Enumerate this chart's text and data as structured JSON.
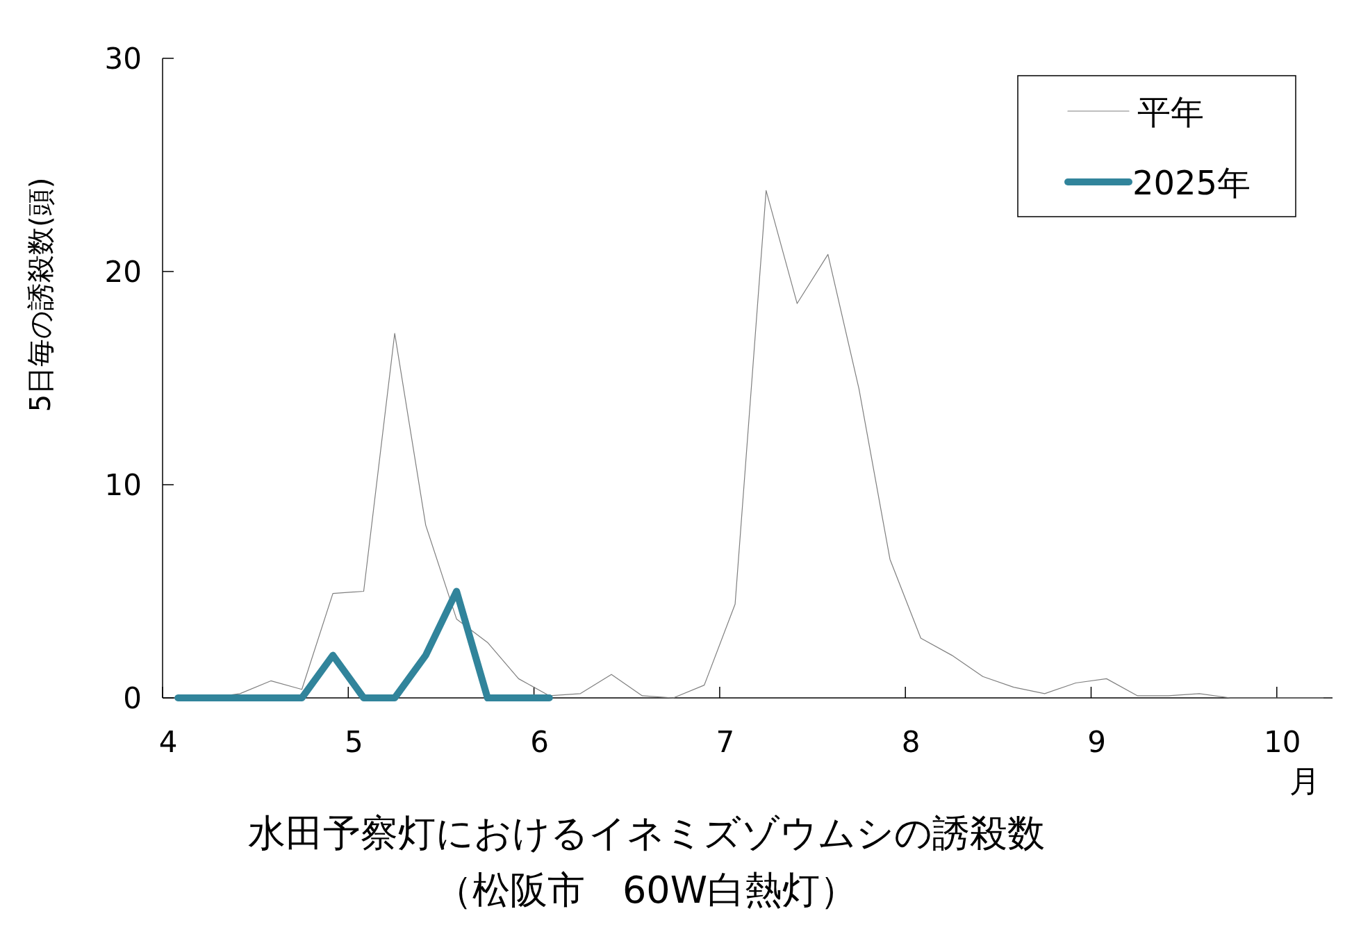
{
  "chart_data": {
    "type": "line",
    "title": "水田予察灯におけるイネミズゾウムシの誘殺数",
    "subtitle": "（松阪市　60W白熱灯）",
    "ylabel": "5日毎の誘殺数(頭)",
    "xlabel": "月",
    "xlim": [
      4,
      10.3
    ],
    "xticks": [
      4,
      5,
      6,
      7,
      8,
      9,
      10
    ],
    "ylim": [
      0,
      30
    ],
    "yticks": [
      0,
      10,
      20,
      30
    ],
    "legend": "top right",
    "series": [
      {
        "name": "平年",
        "color": "#7f7f7f",
        "x": [
          4.083,
          4.25,
          4.417,
          4.583,
          4.75,
          4.917,
          5.083,
          5.25,
          5.417,
          5.583,
          5.75,
          5.917,
          6.083,
          6.25,
          6.417,
          6.583,
          6.75,
          6.917,
          7.083,
          7.25,
          7.417,
          7.583,
          7.75,
          7.917,
          8.083,
          8.25,
          8.417,
          8.583,
          8.75,
          8.917,
          9.083,
          9.25,
          9.417,
          9.583,
          9.75,
          9.917,
          10.083,
          10.25
        ],
        "values": [
          0,
          0,
          0.2,
          0.8,
          0.4,
          4.9,
          5.0,
          17.1,
          8.1,
          3.7,
          2.6,
          0.9,
          0.1,
          0.2,
          1.1,
          0.1,
          0,
          0.6,
          4.4,
          23.8,
          18.5,
          20.8,
          14.5,
          6.5,
          2.8,
          2.0,
          1.0,
          0.5,
          0.2,
          0.7,
          0.9,
          0.1,
          0.1,
          0.2,
          0,
          0,
          0,
          0
        ]
      },
      {
        "name": "2025年",
        "color": "#31849b",
        "x": [
          4.083,
          4.25,
          4.417,
          4.583,
          4.75,
          4.917,
          5.083,
          5.25,
          5.417,
          5.583,
          5.75,
          5.917,
          6.083
        ],
        "values": [
          0,
          0,
          0,
          0,
          0,
          2,
          0,
          0,
          2,
          5,
          0,
          0,
          0
        ]
      }
    ]
  }
}
